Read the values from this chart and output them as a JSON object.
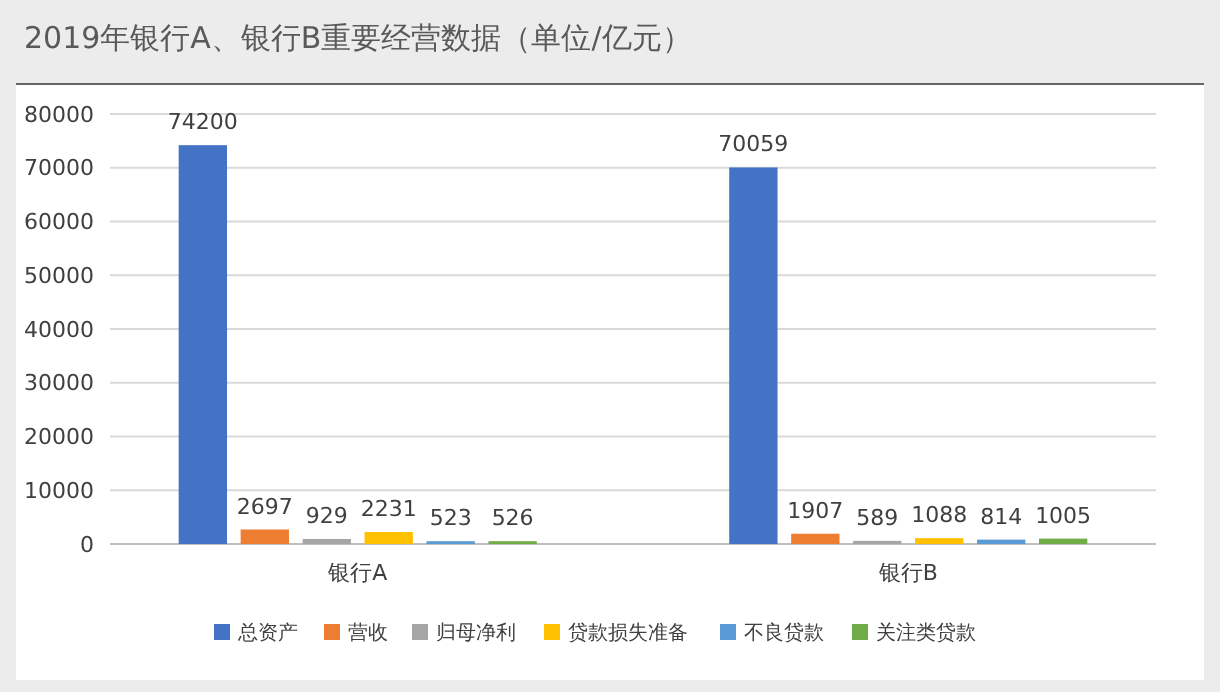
{
  "chart_data": {
    "type": "bar",
    "title": "2019年银行A、银行B重要经营数据（单位/亿元）",
    "categories": [
      "银行A",
      "银行B"
    ],
    "series": [
      {
        "name": "总资产",
        "color": "#4472c4",
        "values": [
          74200,
          70059
        ]
      },
      {
        "name": "营收",
        "color": "#ed7d31",
        "values": [
          2697,
          1907
        ]
      },
      {
        "name": "归母净利",
        "color": "#a5a5a5",
        "values": [
          929,
          589
        ]
      },
      {
        "name": "贷款损失准备",
        "color": "#ffc000",
        "values": [
          2231,
          1088
        ]
      },
      {
        "name": "不良贷款",
        "color": "#5b9bd5",
        "values": [
          523,
          814
        ]
      },
      {
        "name": "关注类贷款",
        "color": "#70ad47",
        "values": [
          526,
          1005
        ]
      }
    ],
    "ylim": [
      0,
      80000
    ],
    "yticks": [
      0,
      10000,
      20000,
      30000,
      40000,
      50000,
      60000,
      70000,
      80000
    ],
    "grid": "y",
    "legend": "bottom",
    "data_labels": true
  }
}
